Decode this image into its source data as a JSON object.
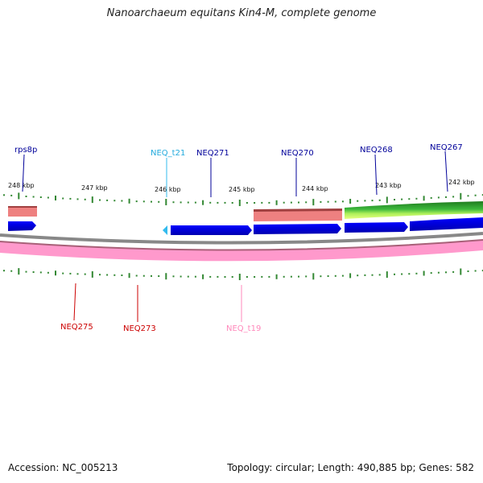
{
  "title": "Nanoarchaeum equitans Kin4-M, complete genome",
  "footer": {
    "accession": "Accession: NC_005213",
    "topology": "Topology: circular; Length: 490,885 bp; Genes: 582"
  },
  "colors": {
    "forward_cds": "#0000e6",
    "trna_forward": "#33bbee",
    "forward_label": "#00009a",
    "trna_forward_label": "#22aadd",
    "reverse_label": "#cc0000",
    "trna_reverse_label": "#ff88bb",
    "backbone": "#888888",
    "reverse_band": "#ff99cc",
    "rrna_band": "#ee8080",
    "ticks": "#338833"
  },
  "scale_labels": [
    "248 kbp",
    "247 kbp",
    "246 kbp",
    "245 kbp",
    "244 kbp",
    "243 kbp",
    "242 kbp"
  ],
  "forward_labels": [
    "rps8p",
    "NEQ_t21",
    "NEQ271",
    "NEQ270",
    "NEQ268",
    "NEQ267"
  ],
  "reverse_labels": [
    "NEQ275",
    "NEQ273",
    "NEQ_t19"
  ]
}
